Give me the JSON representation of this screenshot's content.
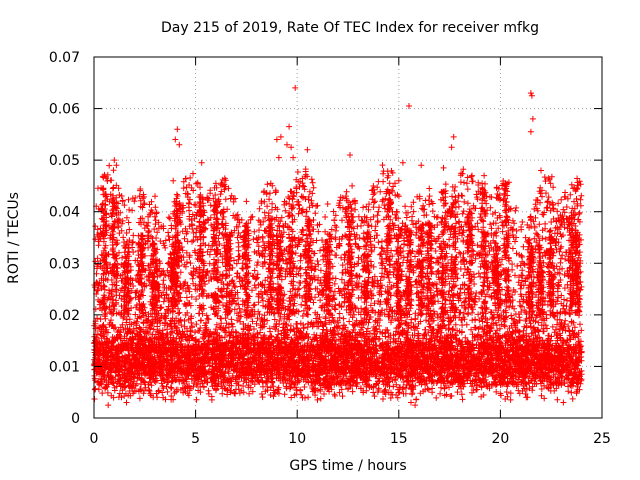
{
  "chart_data": {
    "type": "scatter",
    "title": "Day 215 of 2019, Rate Of TEC Index for receiver mfkg",
    "xlabel": "GPS time / hours",
    "ylabel": "ROTI / TECUs",
    "xlim": [
      0,
      25
    ],
    "ylim": [
      0,
      0.07
    ],
    "x_ticks": [
      "0",
      "5",
      "10",
      "15",
      "20",
      "25"
    ],
    "y_ticks": [
      "0",
      "0.01",
      "0.02",
      "0.03",
      "0.04",
      "0.05",
      "0.06",
      "0.07"
    ],
    "x_tick_values": [
      0,
      5,
      10,
      15,
      20,
      25
    ],
    "y_tick_values": [
      0,
      0.01,
      0.02,
      0.03,
      0.04,
      0.05,
      0.06,
      0.07
    ],
    "grid": true,
    "marker": "+",
    "series": [
      {
        "name": "ROTI",
        "color": "#ff0000",
        "x_range": [
          0,
          24
        ],
        "typical_range": [
          0.005,
          0.02
        ],
        "points": [
          [
            9.9,
            0.064
          ],
          [
            15.5,
            0.0605
          ],
          [
            21.5,
            0.063
          ],
          [
            21.55,
            0.0625
          ],
          [
            21.6,
            0.058
          ],
          [
            21.5,
            0.0555
          ],
          [
            9.6,
            0.0565
          ],
          [
            9.0,
            0.054
          ],
          [
            9.2,
            0.0545
          ],
          [
            4.1,
            0.056
          ],
          [
            4.0,
            0.054
          ],
          [
            4.2,
            0.053
          ],
          [
            9.5,
            0.053
          ],
          [
            9.7,
            0.0525
          ],
          [
            10.5,
            0.052
          ],
          [
            12.6,
            0.051
          ],
          [
            17.7,
            0.0545
          ],
          [
            17.6,
            0.0525
          ],
          [
            9.1,
            0.0505
          ],
          [
            9.8,
            0.0505
          ],
          [
            1.0,
            0.05
          ],
          [
            1.1,
            0.049
          ],
          [
            5.3,
            0.0495
          ],
          [
            15.2,
            0.0495
          ],
          [
            16.1,
            0.049
          ],
          [
            19.2,
            0.047
          ],
          [
            17.2,
            0.0485
          ],
          [
            22.0,
            0.048
          ],
          [
            3.9,
            0.046
          ],
          [
            12.7,
            0.045
          ],
          [
            15.0,
            0.046
          ],
          [
            23.7,
            0.044
          ],
          [
            8.7,
            0.0455
          ],
          [
            6.0,
            0.0455
          ],
          [
            16.5,
            0.0445
          ],
          [
            3.0,
            0.043
          ],
          [
            7.5,
            0.042
          ],
          [
            11.5,
            0.0415
          ],
          [
            13.4,
            0.041
          ],
          [
            18.5,
            0.0405
          ],
          [
            20.3,
            0.0405
          ],
          [
            0.2,
            0.0355
          ],
          [
            0.5,
            0.038
          ],
          [
            2.3,
            0.041
          ],
          [
            14.5,
            0.039
          ],
          [
            19.8,
            0.036
          ],
          [
            22.5,
            0.038
          ],
          [
            23.9,
            0.0355
          ],
          [
            23.5,
            0.0335
          ],
          [
            0.15,
            0.029
          ],
          [
            0.7,
            0.0025
          ],
          [
            15.8,
            0.0025
          ],
          [
            15.6,
            0.003
          ],
          [
            1.6,
            0.003
          ],
          [
            5.8,
            0.0035
          ],
          [
            11.0,
            0.0035
          ],
          [
            20.5,
            0.0035
          ],
          [
            23.1,
            0.003
          ]
        ]
      }
    ]
  }
}
